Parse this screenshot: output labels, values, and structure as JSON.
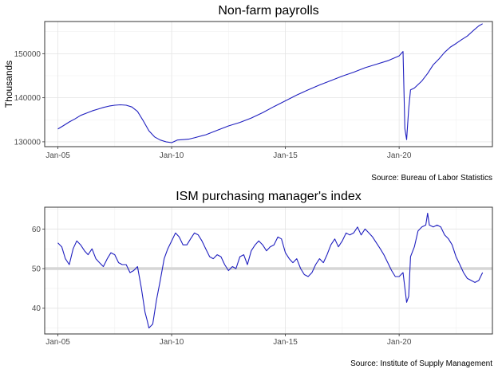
{
  "chart_data": [
    {
      "type": "line",
      "title": "Non-farm payrolls",
      "xlabel": "",
      "ylabel": "Thousands",
      "source": "Source: Bureau of Labor Statistics",
      "xlim": [
        2004.42,
        2024.1
      ],
      "ylim": [
        128900,
        157300
      ],
      "xticks": [
        {
          "value": 2005,
          "label": "Jan-05"
        },
        {
          "value": 2010,
          "label": "Jan-10"
        },
        {
          "value": 2015,
          "label": "Jan-15"
        },
        {
          "value": 2020,
          "label": "Jan-20"
        }
      ],
      "yticks": [
        {
          "value": 130000,
          "label": "130000"
        },
        {
          "value": 140000,
          "label": "140000"
        },
        {
          "value": 150000,
          "label": "150000"
        }
      ],
      "grid": true,
      "color": "#1f1fbf",
      "series": [
        {
          "x": [
            2005.0,
            2005.25,
            2005.5,
            2005.75,
            2006.0,
            2006.25,
            2006.5,
            2006.75,
            2007.0,
            2007.25,
            2007.5,
            2007.75,
            2008.0,
            2008.25,
            2008.5,
            2008.75,
            2009.0,
            2009.25,
            2009.5,
            2009.75,
            2010.0,
            2010.25,
            2010.5,
            2010.75,
            2011.0,
            2011.5,
            2012.0,
            2012.5,
            2013.0,
            2013.5,
            2014.0,
            2014.5,
            2015.0,
            2015.5,
            2016.0,
            2016.5,
            2017.0,
            2017.5,
            2018.0,
            2018.5,
            2019.0,
            2019.5,
            2020.0,
            2020.17,
            2020.25,
            2020.33,
            2020.42,
            2020.5,
            2020.67,
            2020.83,
            2021.0,
            2021.25,
            2021.5,
            2021.75,
            2022.0,
            2022.25,
            2022.5,
            2022.75,
            2023.0,
            2023.25,
            2023.5,
            2023.67
          ],
          "y": [
            132900,
            133700,
            134500,
            135200,
            136000,
            136500,
            137000,
            137400,
            137800,
            138100,
            138300,
            138400,
            138300,
            137900,
            136900,
            134800,
            132500,
            131100,
            130400,
            130000,
            129800,
            130400,
            130500,
            130600,
            130900,
            131600,
            132600,
            133600,
            134400,
            135400,
            136600,
            138000,
            139300,
            140600,
            141800,
            142900,
            143900,
            144900,
            145800,
            146800,
            147600,
            148400,
            149500,
            150500,
            133000,
            130500,
            137500,
            141800,
            142200,
            143000,
            143800,
            145500,
            147500,
            148800,
            150300,
            151500,
            152300,
            153200,
            154000,
            155200,
            156300,
            156800
          ]
        }
      ]
    },
    {
      "type": "line",
      "title": "ISM purchasing manager's index",
      "xlabel": "",
      "ylabel": "",
      "source": "Source: Institute of Supply Management",
      "xlim": [
        2004.42,
        2024.1
      ],
      "ylim": [
        33.5,
        65.5
      ],
      "reference_line": 50,
      "xticks": [
        {
          "value": 2005,
          "label": "Jan-05"
        },
        {
          "value": 2010,
          "label": "Jan-10"
        },
        {
          "value": 2015,
          "label": "Jan-15"
        },
        {
          "value": 2020,
          "label": "Jan-20"
        }
      ],
      "yticks": [
        {
          "value": 40,
          "label": "40"
        },
        {
          "value": 50,
          "label": "50"
        },
        {
          "value": 60,
          "label": "60"
        }
      ],
      "grid": true,
      "color": "#1f1fbf",
      "series": [
        {
          "x": [
            2005.0,
            2005.17,
            2005.33,
            2005.5,
            2005.67,
            2005.83,
            2006.0,
            2006.17,
            2006.33,
            2006.5,
            2006.67,
            2006.83,
            2007.0,
            2007.17,
            2007.33,
            2007.5,
            2007.67,
            2007.83,
            2008.0,
            2008.17,
            2008.33,
            2008.5,
            2008.67,
            2008.83,
            2008.92,
            2009.0,
            2009.17,
            2009.33,
            2009.5,
            2009.67,
            2009.83,
            2010.0,
            2010.17,
            2010.33,
            2010.5,
            2010.67,
            2010.83,
            2011.0,
            2011.17,
            2011.33,
            2011.5,
            2011.67,
            2011.83,
            2012.0,
            2012.17,
            2012.33,
            2012.5,
            2012.67,
            2012.83,
            2013.0,
            2013.17,
            2013.33,
            2013.5,
            2013.67,
            2013.83,
            2014.0,
            2014.17,
            2014.33,
            2014.5,
            2014.67,
            2014.83,
            2015.0,
            2015.17,
            2015.33,
            2015.5,
            2015.67,
            2015.83,
            2016.0,
            2016.17,
            2016.33,
            2016.5,
            2016.67,
            2016.83,
            2017.0,
            2017.17,
            2017.33,
            2017.5,
            2017.67,
            2017.83,
            2018.0,
            2018.17,
            2018.33,
            2018.5,
            2018.67,
            2018.83,
            2019.0,
            2019.17,
            2019.33,
            2019.5,
            2019.67,
            2019.83,
            2020.0,
            2020.17,
            2020.33,
            2020.42,
            2020.5,
            2020.67,
            2020.83,
            2021.0,
            2021.17,
            2021.25,
            2021.33,
            2021.5,
            2021.67,
            2021.83,
            2022.0,
            2022.17,
            2022.33,
            2022.5,
            2022.67,
            2022.83,
            2023.0,
            2023.17,
            2023.33,
            2023.5,
            2023.67
          ],
          "y": [
            56.5,
            55.5,
            52.5,
            51,
            55,
            57,
            56,
            54.5,
            53.5,
            55,
            52.5,
            51.5,
            50.5,
            52.5,
            54,
            53.5,
            51.5,
            51,
            51,
            49,
            49.5,
            50.5,
            45,
            39,
            37,
            35,
            36,
            42,
            47,
            52.5,
            55,
            57,
            59,
            58,
            56,
            56,
            57.5,
            59,
            58.5,
            57,
            55,
            53,
            52.5,
            53.5,
            53,
            51,
            49.5,
            50.5,
            50,
            53,
            53.5,
            51,
            54.5,
            56,
            57,
            56,
            54.5,
            55.5,
            56,
            58,
            57.5,
            54,
            52.5,
            51.5,
            52.5,
            50,
            48.5,
            48,
            49,
            51,
            52.5,
            51.5,
            53.5,
            56,
            57.5,
            55.5,
            57,
            59,
            58.5,
            59,
            60.5,
            58.5,
            60,
            59,
            58,
            56.5,
            55,
            53.5,
            51.5,
            49.5,
            48,
            48,
            49,
            41.5,
            43,
            53,
            55.5,
            59.5,
            60.5,
            61,
            64,
            61,
            60.5,
            61,
            60.5,
            58.5,
            57.5,
            56,
            53,
            51,
            49,
            47.5,
            47,
            46.5,
            47,
            49
          ]
        }
      ]
    }
  ]
}
